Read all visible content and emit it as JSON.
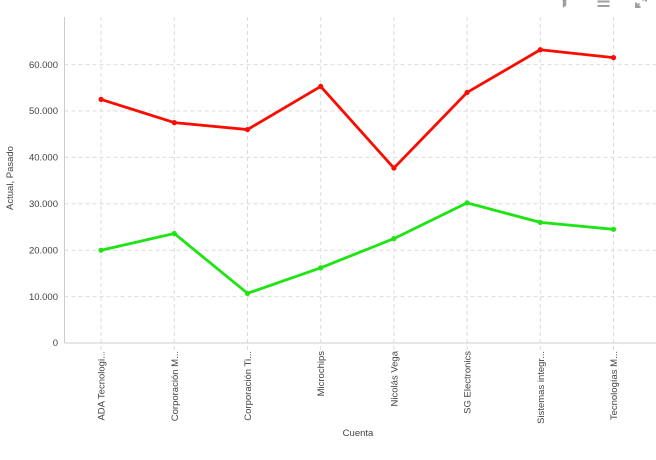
{
  "window": {
    "background": "#ffffff"
  },
  "toolbar": {
    "icon_color": "#9e9e9e",
    "icons": [
      {
        "name": "filter-icon",
        "glyph": "funnel"
      },
      {
        "name": "menu-icon",
        "glyph": "hamburger"
      },
      {
        "name": "expand-icon",
        "glyph": "diagonal-arrows"
      }
    ]
  },
  "chart_data": {
    "type": "line",
    "title": "",
    "xlabel": "Cuenta",
    "ylabel": "Actual, Pasado",
    "categories": [
      "ADA Tecnologi...",
      "Corporación M...",
      "Corporación Ti...",
      "Microchips",
      "Nicolás Vega",
      "SG Electronics",
      "Sistemas integr...",
      "Tecnologías M..."
    ],
    "series": [
      {
        "name": "red",
        "color": "#f90d02",
        "values": [
          52500,
          47500,
          46000,
          55300,
          37700,
          54000,
          63200,
          61500
        ]
      },
      {
        "name": "green",
        "color": "#1ee413",
        "values": [
          20000,
          23600,
          10700,
          16200,
          22500,
          30200,
          26000,
          24500
        ]
      }
    ],
    "y_ticks": [
      0,
      10000,
      20000,
      30000,
      40000,
      50000,
      60000
    ],
    "y_tick_labels": [
      "0",
      "10.000",
      "20.000",
      "30.000",
      "40.000",
      "50.000",
      "60.000"
    ],
    "ylim": [
      0,
      70500
    ],
    "grid": "dashed",
    "legend": "none"
  },
  "colors": {
    "grid": "#dcdcdc",
    "axis": "#cccccc",
    "text": "#424242",
    "icon": "#9e9e9e"
  }
}
